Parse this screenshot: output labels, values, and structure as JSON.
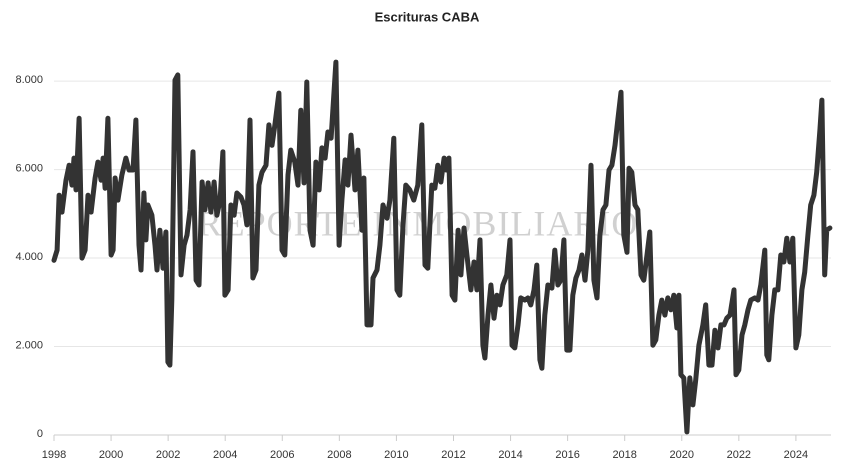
{
  "chart_data": {
    "type": "line",
    "title": "Escrituras CABA",
    "watermark": "REPORTE INMOBILIARIO",
    "xlim": [
      1998,
      2025.23
    ],
    "xticks": [
      1998,
      2000,
      2002,
      2004,
      2006,
      2008,
      2010,
      2012,
      2014,
      2016,
      2018,
      2020,
      2022,
      2024
    ],
    "ylim": [
      0,
      8500
    ],
    "yticks": [
      0,
      {
        "value": 2000,
        "label": "2.000"
      },
      {
        "value": 4000,
        "label": "4.000"
      },
      {
        "value": 6000,
        "label": "6.000"
      },
      {
        "value": 8000,
        "label": "8.000"
      }
    ],
    "grid": true,
    "series": [
      {
        "color": "#333333",
        "x": [
          1998.0,
          1998.11,
          1998.18,
          1998.28,
          1998.42,
          1998.53,
          1998.63,
          1998.7,
          1998.77,
          1998.88,
          1998.98,
          1999.09,
          1999.19,
          1999.3,
          1999.44,
          1999.54,
          1999.65,
          1999.72,
          1999.79,
          1999.89,
          2000.0,
          2000.07,
          2000.14,
          2000.24,
          2000.38,
          2000.52,
          2000.63,
          2000.77,
          2000.87,
          2000.98,
          2001.05,
          2001.15,
          2001.22,
          2001.29,
          2001.43,
          2001.54,
          2001.61,
          2001.71,
          2001.82,
          2001.92,
          2001.99,
          2002.06,
          2002.13,
          2002.24,
          2002.34,
          2002.45,
          2002.56,
          2002.66,
          2002.77,
          2002.87,
          2002.98,
          2003.08,
          2003.19,
          2003.29,
          2003.4,
          2003.5,
          2003.61,
          2003.71,
          2003.82,
          2003.92,
          2003.99,
          2004.1,
          2004.2,
          2004.31,
          2004.41,
          2004.55,
          2004.66,
          2004.76,
          2004.87,
          2004.97,
          2005.08,
          2005.18,
          2005.29,
          2005.43,
          2005.53,
          2005.64,
          2005.74,
          2005.88,
          2005.99,
          2006.09,
          2006.2,
          2006.3,
          2006.44,
          2006.55,
          2006.65,
          2006.76,
          2006.86,
          2006.97,
          2007.08,
          2007.18,
          2007.29,
          2007.39,
          2007.5,
          2007.6,
          2007.71,
          2007.88,
          2007.99,
          2008.09,
          2008.2,
          2008.3,
          2008.41,
          2008.55,
          2008.65,
          2008.79,
          2008.86,
          2008.97,
          2009.11,
          2009.18,
          2009.32,
          2009.42,
          2009.53,
          2009.67,
          2009.77,
          2009.91,
          2010.02,
          2010.12,
          2010.23,
          2010.33,
          2010.47,
          2010.61,
          2010.75,
          2010.89,
          2011.0,
          2011.1,
          2011.24,
          2011.35,
          2011.45,
          2011.56,
          2011.67,
          2011.74,
          2011.84,
          2011.95,
          2012.05,
          2012.16,
          2012.26,
          2012.37,
          2012.47,
          2012.61,
          2012.72,
          2012.82,
          2012.93,
          2013.03,
          2013.1,
          2013.21,
          2013.31,
          2013.42,
          2013.52,
          2013.63,
          2013.73,
          2013.87,
          2013.98,
          2014.05,
          2014.15,
          2014.26,
          2014.36,
          2014.5,
          2014.61,
          2014.71,
          2014.82,
          2014.92,
          2015.03,
          2015.1,
          2015.2,
          2015.31,
          2015.45,
          2015.55,
          2015.66,
          2015.76,
          2015.87,
          2015.97,
          2016.08,
          2016.18,
          2016.29,
          2016.4,
          2016.5,
          2016.61,
          2016.71,
          2016.82,
          2016.92,
          2017.03,
          2017.13,
          2017.24,
          2017.34,
          2017.45,
          2017.55,
          2017.66,
          2017.76,
          2017.87,
          2017.97,
          2018.08,
          2018.15,
          2018.25,
          2018.36,
          2018.46,
          2018.57,
          2018.67,
          2018.78,
          2018.88,
          2018.99,
          2019.09,
          2019.2,
          2019.3,
          2019.41,
          2019.51,
          2019.62,
          2019.72,
          2019.83,
          2019.9,
          2019.97,
          2020.07,
          2020.18,
          2020.28,
          2020.39,
          2020.49,
          2020.6,
          2020.74,
          2020.84,
          2020.95,
          2021.06,
          2021.16,
          2021.27,
          2021.37,
          2021.48,
          2021.58,
          2021.69,
          2021.83,
          2021.9,
          2022.0,
          2022.11,
          2022.21,
          2022.32,
          2022.42,
          2022.56,
          2022.67,
          2022.77,
          2022.91,
          2022.98,
          2023.05,
          2023.16,
          2023.26,
          2023.37,
          2023.47,
          2023.58,
          2023.68,
          2023.79,
          2023.89,
          2024.0,
          2024.1,
          2024.21,
          2024.31,
          2024.42,
          2024.52,
          2024.63,
          2024.73,
          2024.84,
          2024.91,
          2025.01,
          2025.08,
          2025.19
        ],
        "values": [
          3950,
          4180,
          5420,
          5040,
          5760,
          6100,
          5650,
          6260,
          5540,
          7160,
          4000,
          4180,
          5420,
          5040,
          5810,
          6170,
          5760,
          6260,
          5580,
          7160,
          4070,
          4180,
          5810,
          5310,
          5880,
          6260,
          5990,
          5990,
          7120,
          4290,
          3730,
          5470,
          4410,
          5200,
          4970,
          4290,
          3730,
          4630,
          3770,
          4590,
          1650,
          1580,
          3050,
          8020,
          8140,
          3620,
          4290,
          4520,
          5090,
          6400,
          3500,
          3390,
          5720,
          5090,
          5700,
          5040,
          5720,
          4970,
          5310,
          6400,
          3160,
          3280,
          5200,
          4970,
          5470,
          5380,
          5200,
          4750,
          7120,
          3550,
          3730,
          5650,
          5940,
          6100,
          7010,
          6550,
          7010,
          7730,
          4180,
          4070,
          5880,
          6440,
          6170,
          5650,
          7340,
          5700,
          7980,
          4630,
          4290,
          6170,
          5540,
          6490,
          6260,
          6850,
          6710,
          8430,
          4290,
          5310,
          6220,
          5650,
          6780,
          5540,
          6440,
          4630,
          5810,
          2490,
          2490,
          3550,
          3730,
          4290,
          5200,
          4900,
          5310,
          6710,
          3280,
          3160,
          4750,
          5650,
          5540,
          5310,
          5650,
          7010,
          3840,
          3770,
          5650,
          5580,
          6100,
          5720,
          6260,
          5990,
          6260,
          3160,
          3050,
          4630,
          3620,
          4680,
          4070,
          3280,
          3910,
          3280,
          4410,
          2030,
          1740,
          2710,
          3390,
          2640,
          3160,
          2940,
          3390,
          3620,
          4410,
          2030,
          1970,
          2490,
          3100,
          3050,
          3100,
          2940,
          3280,
          3840,
          1700,
          1510,
          2710,
          3390,
          3320,
          4180,
          3390,
          3500,
          4410,
          1920,
          1920,
          3160,
          3550,
          3730,
          4070,
          3500,
          4180,
          6100,
          3500,
          3100,
          4520,
          5090,
          5200,
          5990,
          6100,
          6550,
          7120,
          7750,
          4520,
          4130,
          6030,
          5940,
          5200,
          5090,
          3620,
          3500,
          4070,
          4590,
          2030,
          2150,
          2710,
          3050,
          2710,
          3100,
          2830,
          3160,
          2420,
          3160,
          1360,
          1290,
          70,
          1290,
          680,
          1240,
          2030,
          2490,
          2940,
          1580,
          1580,
          2370,
          1970,
          2490,
          2490,
          2640,
          2710,
          3280,
          1360,
          1470,
          2260,
          2490,
          2830,
          3050,
          3100,
          3050,
          3390,
          4180,
          1810,
          1700,
          2710,
          3280,
          3280,
          4070,
          3910,
          4450,
          3910,
          4450,
          1970,
          2260,
          3280,
          3680,
          4520,
          5200,
          5420,
          5940,
          6890,
          7570,
          3620,
          4630,
          4680
        ]
      }
    ]
  }
}
